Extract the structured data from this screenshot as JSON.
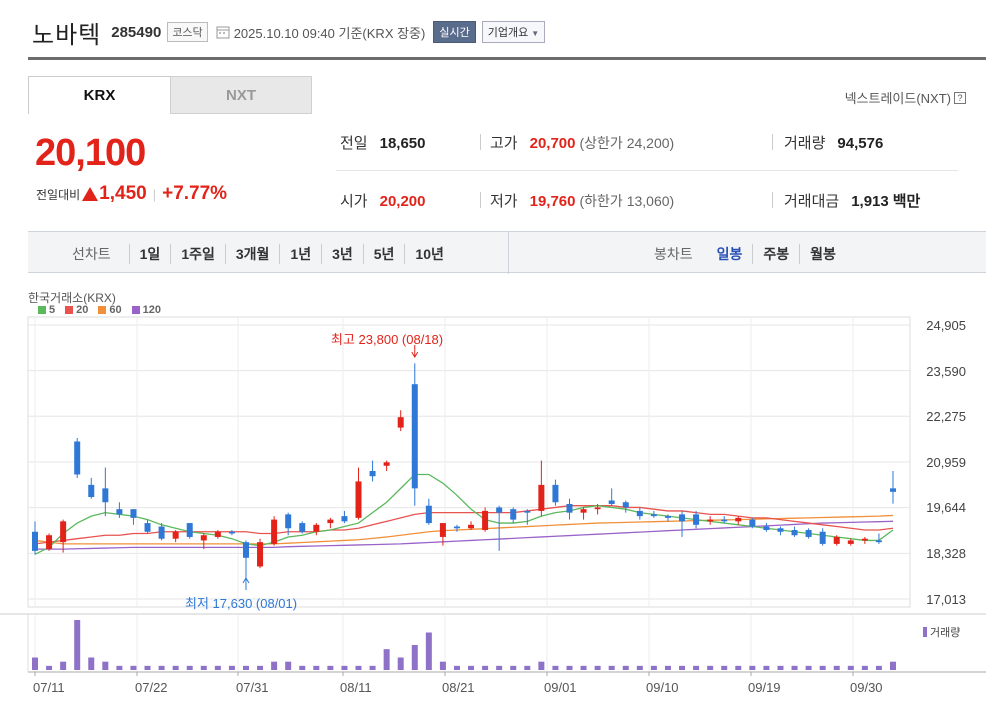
{
  "header": {
    "name": "노바텍",
    "code": "285490",
    "market": "코스닥",
    "datetime": "2025.10.10 09:40 기준(KRX 장중)",
    "realtime": "실시간",
    "corp_overview": "기업개요"
  },
  "tabs": [
    {
      "label": "KRX",
      "active": true
    },
    {
      "label": "NXT",
      "active": false
    }
  ],
  "nxt_link": "넥스트레이드(NXT)",
  "help_icon": "?",
  "current": {
    "price": "20,100",
    "change_label": "전일대비",
    "change_amount": "1,450",
    "change_pct": "+7.77%",
    "direction": "up"
  },
  "stats": {
    "prev_close_label": "전일",
    "prev_close": "18,650",
    "high_label": "고가",
    "high": "20,700",
    "upper_limit": "(상한가 24,200)",
    "volume_label": "거래량",
    "volume": "94,576",
    "open_label": "시가",
    "open": "20,200",
    "low_label": "저가",
    "low": "19,760",
    "lower_limit": "(하한가 13,060)",
    "amount_label": "거래대금",
    "amount": "1,913",
    "amount_unit": "백만"
  },
  "period": {
    "label": "선차트",
    "items": [
      "1일",
      "1주일",
      "3개월",
      "1년",
      "3년",
      "5년",
      "10년"
    ]
  },
  "candle": {
    "label": "봉차트",
    "items": [
      "일봉",
      "주봉",
      "월봉"
    ],
    "selected": "일봉"
  },
  "chart_source": "한국거래소(KRX)",
  "legend": [
    {
      "label": "5",
      "color": "#5cb85c"
    },
    {
      "label": "20",
      "color": "#e8534f"
    },
    {
      "label": "60",
      "color": "#f0903a"
    },
    {
      "label": "120",
      "color": "#9a63c9"
    }
  ],
  "annotations": {
    "high": "최고 23,800 (08/18)",
    "low": "최저 17,630 (08/01)"
  },
  "volume_legend": "거래량",
  "chart_data": {
    "type": "candlestick",
    "y_ticks": [
      "24,905",
      "23,590",
      "22,275",
      "20,959",
      "19,644",
      "18,328",
      "17,013"
    ],
    "x_ticks": [
      "07/11",
      "07/22",
      "07/31",
      "08/11",
      "08/21",
      "09/01",
      "09/10",
      "09/19",
      "09/30"
    ],
    "ylim": [
      17013,
      24905
    ],
    "colors": {
      "up": "#e2231a",
      "down": "#2f78d6"
    },
    "candles": [
      {
        "o": 18950,
        "h": 19250,
        "l": 18300,
        "c": 18400
      },
      {
        "o": 18450,
        "h": 18900,
        "l": 18400,
        "c": 18850
      },
      {
        "o": 18650,
        "h": 19300,
        "l": 18350,
        "c": 19250
      },
      {
        "o": 21550,
        "h": 21650,
        "l": 20500,
        "c": 20600
      },
      {
        "o": 20300,
        "h": 20500,
        "l": 19900,
        "c": 19950
      },
      {
        "o": 20200,
        "h": 20800,
        "l": 19400,
        "c": 19800
      },
      {
        "o": 19600,
        "h": 19800,
        "l": 19350,
        "c": 19450
      },
      {
        "o": 19600,
        "h": 19600,
        "l": 19150,
        "c": 19350
      },
      {
        "o": 19200,
        "h": 19300,
        "l": 18900,
        "c": 18950
      },
      {
        "o": 19100,
        "h": 19200,
        "l": 18700,
        "c": 18750
      },
      {
        "o": 18750,
        "h": 19000,
        "l": 18650,
        "c": 18950
      },
      {
        "o": 19200,
        "h": 19200,
        "l": 18750,
        "c": 18800
      },
      {
        "o": 18700,
        "h": 18900,
        "l": 18450,
        "c": 18850
      },
      {
        "o": 18800,
        "h": 19000,
        "l": 18750,
        "c": 18950
      },
      {
        "o": 18950,
        "h": 19000,
        "l": 18850,
        "c": 18900
      },
      {
        "o": 18650,
        "h": 18700,
        "l": 17630,
        "c": 18200
      },
      {
        "o": 17950,
        "h": 18750,
        "l": 17900,
        "c": 18650
      },
      {
        "o": 18600,
        "h": 19400,
        "l": 18550,
        "c": 19300
      },
      {
        "o": 19450,
        "h": 19500,
        "l": 18850,
        "c": 19050
      },
      {
        "o": 19200,
        "h": 19250,
        "l": 18900,
        "c": 18950
      },
      {
        "o": 18950,
        "h": 19200,
        "l": 18850,
        "c": 19150
      },
      {
        "o": 19200,
        "h": 19350,
        "l": 19050,
        "c": 19300
      },
      {
        "o": 19400,
        "h": 19550,
        "l": 19200,
        "c": 19250
      },
      {
        "o": 19350,
        "h": 20800,
        "l": 19300,
        "c": 20400
      },
      {
        "o": 20700,
        "h": 21000,
        "l": 20400,
        "c": 20550
      },
      {
        "o": 20850,
        "h": 21000,
        "l": 20700,
        "c": 20950
      },
      {
        "o": 21950,
        "h": 22450,
        "l": 21850,
        "c": 22250
      },
      {
        "o": 23200,
        "h": 23800,
        "l": 19700,
        "c": 20200
      },
      {
        "o": 19700,
        "h": 19900,
        "l": 19150,
        "c": 19200
      },
      {
        "o": 18800,
        "h": 19200,
        "l": 18550,
        "c": 19200
      },
      {
        "o": 19100,
        "h": 19150,
        "l": 18950,
        "c": 19050
      },
      {
        "o": 19050,
        "h": 19250,
        "l": 19000,
        "c": 19150
      },
      {
        "o": 19000,
        "h": 19650,
        "l": 18950,
        "c": 19550
      },
      {
        "o": 19650,
        "h": 19700,
        "l": 18400,
        "c": 19500
      },
      {
        "o": 19600,
        "h": 19650,
        "l": 19200,
        "c": 19300
      },
      {
        "o": 19550,
        "h": 19600,
        "l": 19150,
        "c": 19500
      },
      {
        "o": 19550,
        "h": 21000,
        "l": 19400,
        "c": 20300
      },
      {
        "o": 20300,
        "h": 20450,
        "l": 19700,
        "c": 19800
      },
      {
        "o": 19750,
        "h": 19900,
        "l": 19300,
        "c": 19500
      },
      {
        "o": 19500,
        "h": 19650,
        "l": 19300,
        "c": 19600
      },
      {
        "o": 19600,
        "h": 19750,
        "l": 19450,
        "c": 19650
      },
      {
        "o": 19850,
        "h": 20200,
        "l": 19700,
        "c": 19750
      },
      {
        "o": 19800,
        "h": 19850,
        "l": 19500,
        "c": 19650
      },
      {
        "o": 19550,
        "h": 19650,
        "l": 19300,
        "c": 19400
      },
      {
        "o": 19450,
        "h": 19550,
        "l": 19350,
        "c": 19400
      },
      {
        "o": 19400,
        "h": 19450,
        "l": 19250,
        "c": 19350
      },
      {
        "o": 19450,
        "h": 19550,
        "l": 18800,
        "c": 19250
      },
      {
        "o": 19450,
        "h": 19550,
        "l": 19050,
        "c": 19150
      },
      {
        "o": 19250,
        "h": 19400,
        "l": 19150,
        "c": 19300
      },
      {
        "o": 19300,
        "h": 19400,
        "l": 19200,
        "c": 19250
      },
      {
        "o": 19250,
        "h": 19400,
        "l": 19150,
        "c": 19350
      },
      {
        "o": 19300,
        "h": 19350,
        "l": 19050,
        "c": 19100
      },
      {
        "o": 19100,
        "h": 19200,
        "l": 18950,
        "c": 19000
      },
      {
        "o": 19050,
        "h": 19100,
        "l": 18850,
        "c": 18950
      },
      {
        "o": 19000,
        "h": 19100,
        "l": 18800,
        "c": 18850
      },
      {
        "o": 19000,
        "h": 19050,
        "l": 18750,
        "c": 18800
      },
      {
        "o": 18950,
        "h": 19050,
        "l": 18550,
        "c": 18600
      },
      {
        "o": 18600,
        "h": 18850,
        "l": 18550,
        "c": 18800
      },
      {
        "o": 18600,
        "h": 18750,
        "l": 18550,
        "c": 18700
      },
      {
        "o": 18700,
        "h": 18800,
        "l": 18600,
        "c": 18750
      },
      {
        "o": 18700,
        "h": 18900,
        "l": 18600,
        "c": 18650
      },
      {
        "o": 20200,
        "h": 20700,
        "l": 19760,
        "c": 20100
      }
    ],
    "ma": {
      "5": [
        18300,
        18500,
        18900,
        19200,
        19400,
        19500,
        19450,
        19400,
        19300,
        19150,
        19050,
        18950,
        18900,
        18850,
        18750,
        18600,
        18550,
        18650,
        18800,
        18850,
        18950,
        19000,
        19100,
        19200,
        19500,
        19800,
        20200,
        20600,
        20600,
        20350,
        20000,
        19600,
        19300,
        19200,
        19200,
        19250,
        19400,
        19500,
        19550,
        19650,
        19700,
        19650,
        19600,
        19500,
        19450,
        19400,
        19350,
        19300,
        19250,
        19200,
        19150,
        19100,
        19050,
        19000,
        18950,
        18900,
        18850,
        18800,
        18750,
        18700,
        18700,
        19000
      ],
      "20": [
        18600,
        18650,
        18700,
        18750,
        18800,
        18850,
        18850,
        18900,
        18900,
        18950,
        18950,
        18950,
        18950,
        18950,
        18950,
        18950,
        18900,
        18900,
        18950,
        18950,
        18950,
        19000,
        19000,
        19050,
        19150,
        19250,
        19350,
        19450,
        19500,
        19500,
        19500,
        19500,
        19500,
        19500,
        19500,
        19550,
        19600,
        19650,
        19700,
        19700,
        19700,
        19700,
        19650,
        19650,
        19600,
        19550,
        19550,
        19500,
        19450,
        19450,
        19400,
        19350,
        19350,
        19300,
        19250,
        19200,
        19150,
        19100,
        19050,
        19000,
        19000,
        19050
      ],
      "60": [
        18700,
        18650,
        18600,
        18600,
        18600,
        18600,
        18600,
        18600,
        18600,
        18600,
        18600,
        18600,
        18600,
        18600,
        18600,
        18600,
        18600,
        18600,
        18620,
        18640,
        18660,
        18680,
        18700,
        18720,
        18760,
        18800,
        18850,
        18900,
        18950,
        18980,
        19000,
        19020,
        19040,
        19060,
        19080,
        19100,
        19120,
        19140,
        19160,
        19180,
        19200,
        19210,
        19220,
        19230,
        19240,
        19250,
        19260,
        19270,
        19280,
        19290,
        19300,
        19310,
        19320,
        19330,
        19340,
        19350,
        19360,
        19370,
        19380,
        19390,
        19400,
        19420
      ],
      "120": [
        18450,
        18450,
        18450,
        18460,
        18470,
        18480,
        18490,
        18500,
        18500,
        18500,
        18500,
        18500,
        18500,
        18500,
        18500,
        18500,
        18500,
        18500,
        18520,
        18530,
        18540,
        18550,
        18560,
        18570,
        18580,
        18590,
        18600,
        18620,
        18640,
        18660,
        18680,
        18700,
        18720,
        18740,
        18760,
        18780,
        18800,
        18820,
        18840,
        18860,
        18880,
        18900,
        18920,
        18940,
        18960,
        18980,
        19000,
        19020,
        19040,
        19060,
        19080,
        19100,
        19120,
        19140,
        19160,
        19180,
        19200,
        19210,
        19220,
        19230,
        19240,
        19250
      ]
    },
    "volume": [
      3,
      1,
      2,
      12,
      3,
      2,
      1,
      1,
      1,
      1,
      1,
      1,
      1,
      1,
      1,
      1,
      1,
      2,
      2,
      1,
      1,
      1,
      1,
      1,
      1,
      5,
      3,
      6,
      9,
      2,
      1,
      1,
      1,
      1,
      1,
      1,
      2,
      1,
      1,
      1,
      1,
      1,
      1,
      1,
      1,
      1,
      1,
      1,
      1,
      1,
      1,
      1,
      1,
      1,
      1,
      1,
      1,
      1,
      1,
      1,
      1,
      2
    ]
  }
}
